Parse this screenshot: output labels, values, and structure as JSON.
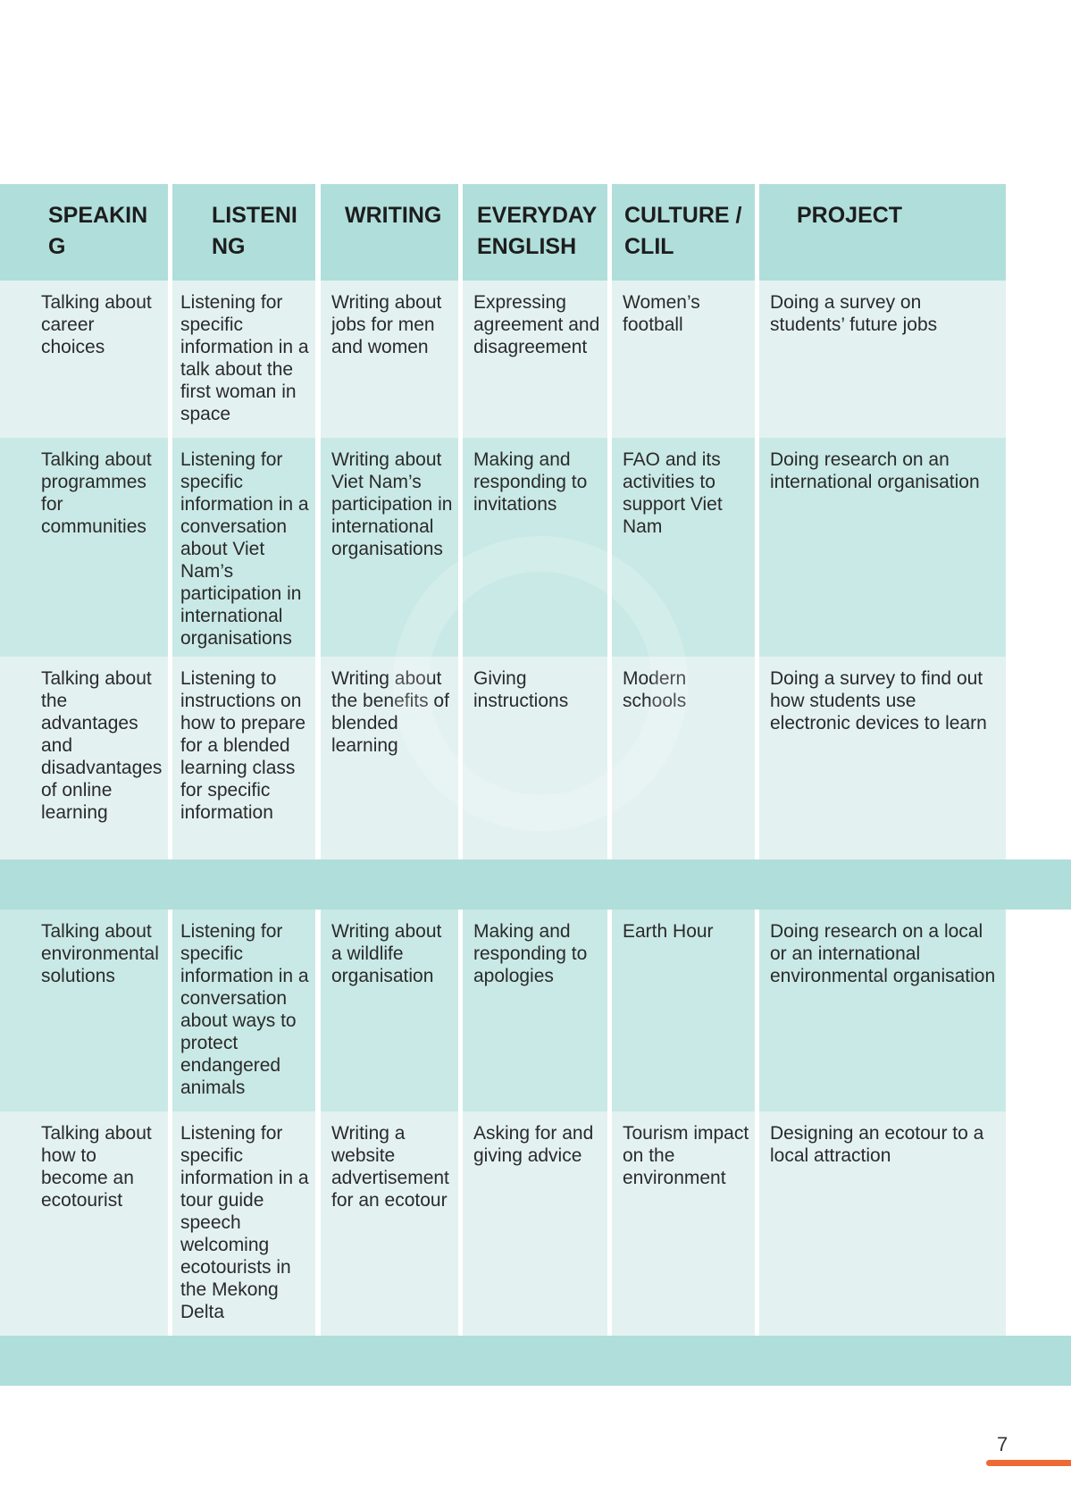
{
  "headers": [
    "SPEAKING",
    "LISTENING",
    "WRITING",
    "EVERYDAY ENGLISH",
    "CULTURE / CLIL",
    "PROJECT"
  ],
  "rows": [
    {
      "shade": "light",
      "cells": [
        "Talking about career choices",
        "Listening for specific information in a talk about the first woman in space",
        "Writing about jobs for men and women",
        "Expressing agreement and disagreement",
        "Women’s football",
        "Doing a survey on students’ future jobs"
      ]
    },
    {
      "shade": "mid",
      "cells": [
        "Talking about programmes for communities",
        "Listening for specific information in a conversation about Viet Nam’s participation in international organisations",
        "Writing about Viet Nam’s participation in international organisations",
        "Making and responding to invitations",
        "FAO and its activities to support Viet Nam",
        "Doing research on an international organisation"
      ]
    },
    {
      "shade": "light",
      "cells": [
        "Talking about the advantages and disadvantages of online learning",
        "Listening to instructions on how to prepare for a blended learning class for specific information",
        "Writing about the benefits of blended learning",
        "Giving instructions",
        "Modern schools",
        "Doing a survey to find out how students use electronic devices to learn"
      ]
    },
    {
      "shade": "band",
      "cells": []
    },
    {
      "shade": "mid",
      "cells": [
        "Talking about environmental solutions",
        "Listening for specific information in a conversation about ways to protect endangered animals",
        "Writing about a wildlife organisation",
        "Making and responding to apologies",
        "Earth Hour",
        "Doing research on a local or an international environmental organisation"
      ]
    },
    {
      "shade": "light",
      "cells": [
        "Talking about how to become an ecotourist",
        "Listening for specific information in a tour guide speech welcoming ecotourists in the Mekong Delta",
        "Writing a website advertisement for an ecotour",
        "Asking for and giving advice",
        "Tourism impact on the environment",
        "Designing an ecotour to a local attraction"
      ]
    },
    {
      "shade": "band",
      "cells": []
    }
  ],
  "page_number": "7",
  "colors": {
    "header": "#b0dedb",
    "row_light": "#e3f2f1",
    "row_mid": "#c9e9e6",
    "accent": "#ee6a35"
  }
}
